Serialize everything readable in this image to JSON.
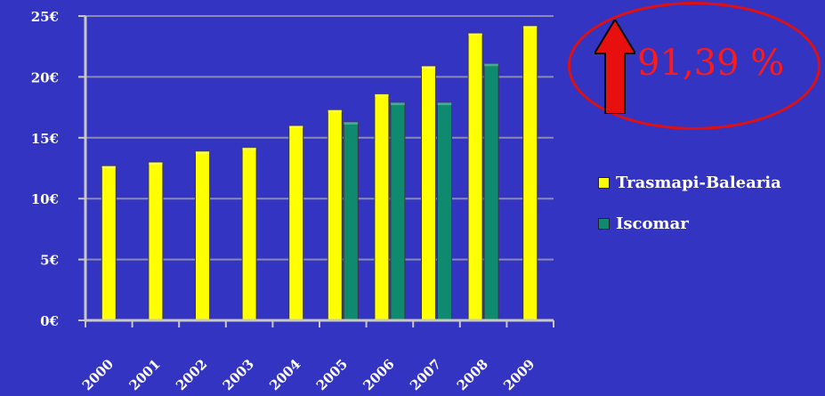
{
  "chart_data": {
    "type": "bar",
    "title": "",
    "xlabel": "",
    "ylabel": "",
    "categories": [
      "2000",
      "2001",
      "2002",
      "2003",
      "2004",
      "2005",
      "2006",
      "2007",
      "2008",
      "2009"
    ],
    "series": [
      {
        "name": "Trasmapi-Balearia",
        "color": "#ffff00",
        "values": [
          12.7,
          13.0,
          13.9,
          14.2,
          16.0,
          17.3,
          18.6,
          20.9,
          23.6,
          24.2
        ]
      },
      {
        "name": "Iscomar",
        "color": "#0f8a6e",
        "values": [
          null,
          null,
          null,
          null,
          null,
          16.3,
          17.9,
          17.9,
          21.1,
          null
        ]
      }
    ],
    "yticks": [
      "0€",
      "5€",
      "10€",
      "15€",
      "20€",
      "25€"
    ],
    "ylim": [
      0,
      25
    ],
    "grid": true,
    "legend_position": "right"
  },
  "callout": {
    "text": "91,39 %",
    "arrow_icon": "up-arrow-icon",
    "arrow_color": "#e8100f",
    "ellipse_color": "#e01010"
  },
  "colors": {
    "background": "#3434c2",
    "gridline": "#8a8ab4",
    "axis": "#c8c8c8"
  }
}
